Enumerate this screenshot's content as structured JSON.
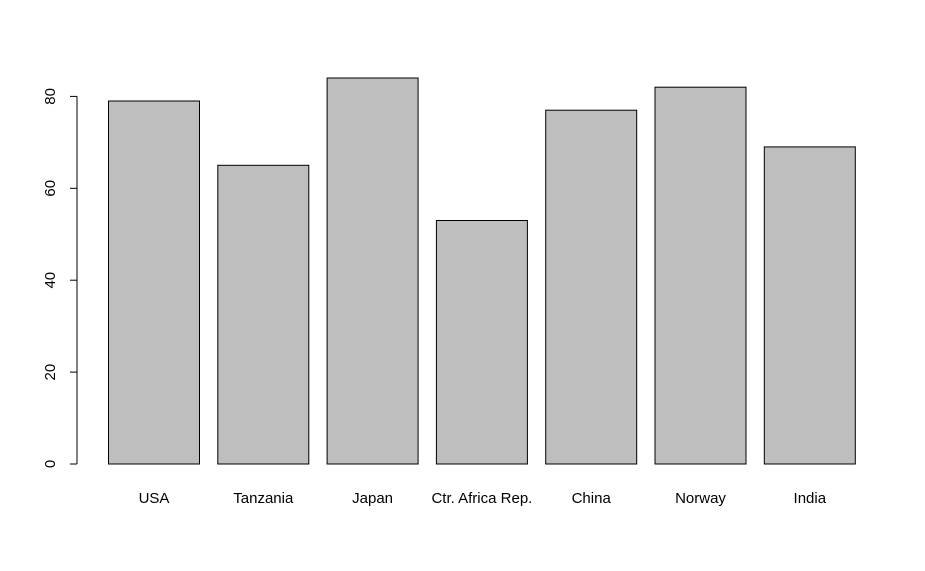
{
  "chart_data": {
    "type": "bar",
    "title": "",
    "xlabel": "",
    "ylabel": "",
    "categories": [
      "USA",
      "Tanzania",
      "Japan",
      "Ctr. Africa Rep.",
      "China",
      "Norway",
      "India"
    ],
    "values": [
      79,
      65,
      84,
      53,
      77,
      82,
      69
    ],
    "ylim": [
      0,
      84
    ],
    "yticks": [
      0,
      20,
      40,
      60,
      80
    ],
    "ytick_labels": [
      "0",
      "20",
      "40",
      "60",
      "80"
    ],
    "grid": false,
    "legend": "none",
    "colors": {
      "bar_fill": "#bebebe",
      "bar_stroke": "#000000",
      "axis": "#000000"
    }
  }
}
